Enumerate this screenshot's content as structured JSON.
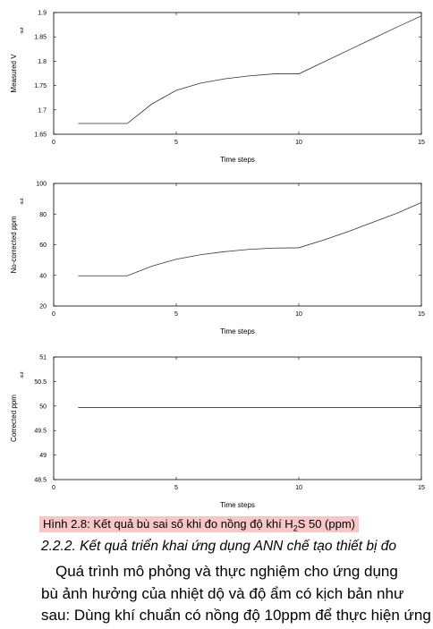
{
  "top_cut_text": "e r ... e .",
  "chart_data": [
    {
      "type": "line",
      "title": "",
      "xlabel": "Time steps",
      "ylabel": "Measured V",
      "ylabel_sub": "out",
      "xlim": [
        0,
        15
      ],
      "ylim": [
        1.65,
        1.9
      ],
      "xticks": [
        "0",
        "5",
        "10",
        "15"
      ],
      "yticks": [
        "1.65",
        "1.7",
        "1.75",
        "1.8",
        "1.85",
        "1.9"
      ],
      "ytick_values": [
        1.65,
        1.7,
        1.75,
        1.8,
        1.85,
        1.9
      ],
      "grid": false,
      "x": [
        1,
        2,
        3,
        4,
        5,
        6,
        7,
        8,
        9,
        10,
        11,
        12,
        13,
        14,
        15
      ],
      "y": [
        1.672,
        1.672,
        1.672,
        1.712,
        1.74,
        1.755,
        1.764,
        1.77,
        1.774,
        1.774,
        1.798,
        1.822,
        1.846,
        1.87,
        1.893
      ]
    },
    {
      "type": "line",
      "title": "",
      "xlabel": "Time steps",
      "ylabel": "No-corrected ppm",
      "ylabel_sub": "out",
      "xlim": [
        0,
        15
      ],
      "ylim": [
        20,
        100
      ],
      "xticks": [
        "0",
        "5",
        "10",
        "15"
      ],
      "yticks": [
        "20",
        "40",
        "60",
        "80",
        "100"
      ],
      "ytick_values": [
        20,
        40,
        60,
        80,
        100
      ],
      "grid": false,
      "x": [
        1,
        2,
        3,
        4,
        5,
        6,
        7,
        8,
        9,
        10,
        11,
        12,
        13,
        14,
        15
      ],
      "y": [
        39.7,
        39.7,
        39.7,
        46,
        50.5,
        53.5,
        55.5,
        57,
        57.8,
        58,
        63,
        68.5,
        74.5,
        80.5,
        87.5
      ]
    },
    {
      "type": "line",
      "title": "",
      "xlabel": "Time steps",
      "ylabel": "Corrected ppm",
      "ylabel_sub": "out",
      "xlim": [
        0,
        15
      ],
      "ylim": [
        48.5,
        51
      ],
      "xticks": [
        "0",
        "5",
        "10",
        "15"
      ],
      "yticks": [
        "48.5",
        "49",
        "49.5",
        "50",
        "50.5",
        "51"
      ],
      "ytick_values": [
        48.5,
        49,
        49.5,
        50,
        50.5,
        51
      ],
      "grid": false,
      "x": [
        1,
        2,
        3,
        4,
        5,
        6,
        7,
        8,
        9,
        10,
        11,
        12,
        13,
        14,
        15
      ],
      "y": [
        49.97,
        49.97,
        49.97,
        49.97,
        49.97,
        49.97,
        49.97,
        49.97,
        49.97,
        49.97,
        49.97,
        49.97,
        49.97,
        49.97,
        49.97
      ]
    }
  ],
  "caption": {
    "prefix": "Hình 2.8: Kết quả bù sai số khi đo nồng độ khí H",
    "sub": "2",
    "suffix": "S 50 (ppm)"
  },
  "section_heading": "2.2.2. Kết quả triển khai ứng dụng ANN chế tạo thiết bị đo",
  "paragraph_lines": [
    "Quá trình mô phỏng và thực nghiệm cho ứng dụng",
    "bù ảnh hưởng của nhiệt dộ và độ ẩm có kịch bản như",
    "sau: Dùng khí chuẩn có nồng độ 10ppm để thực hiện ứng"
  ]
}
